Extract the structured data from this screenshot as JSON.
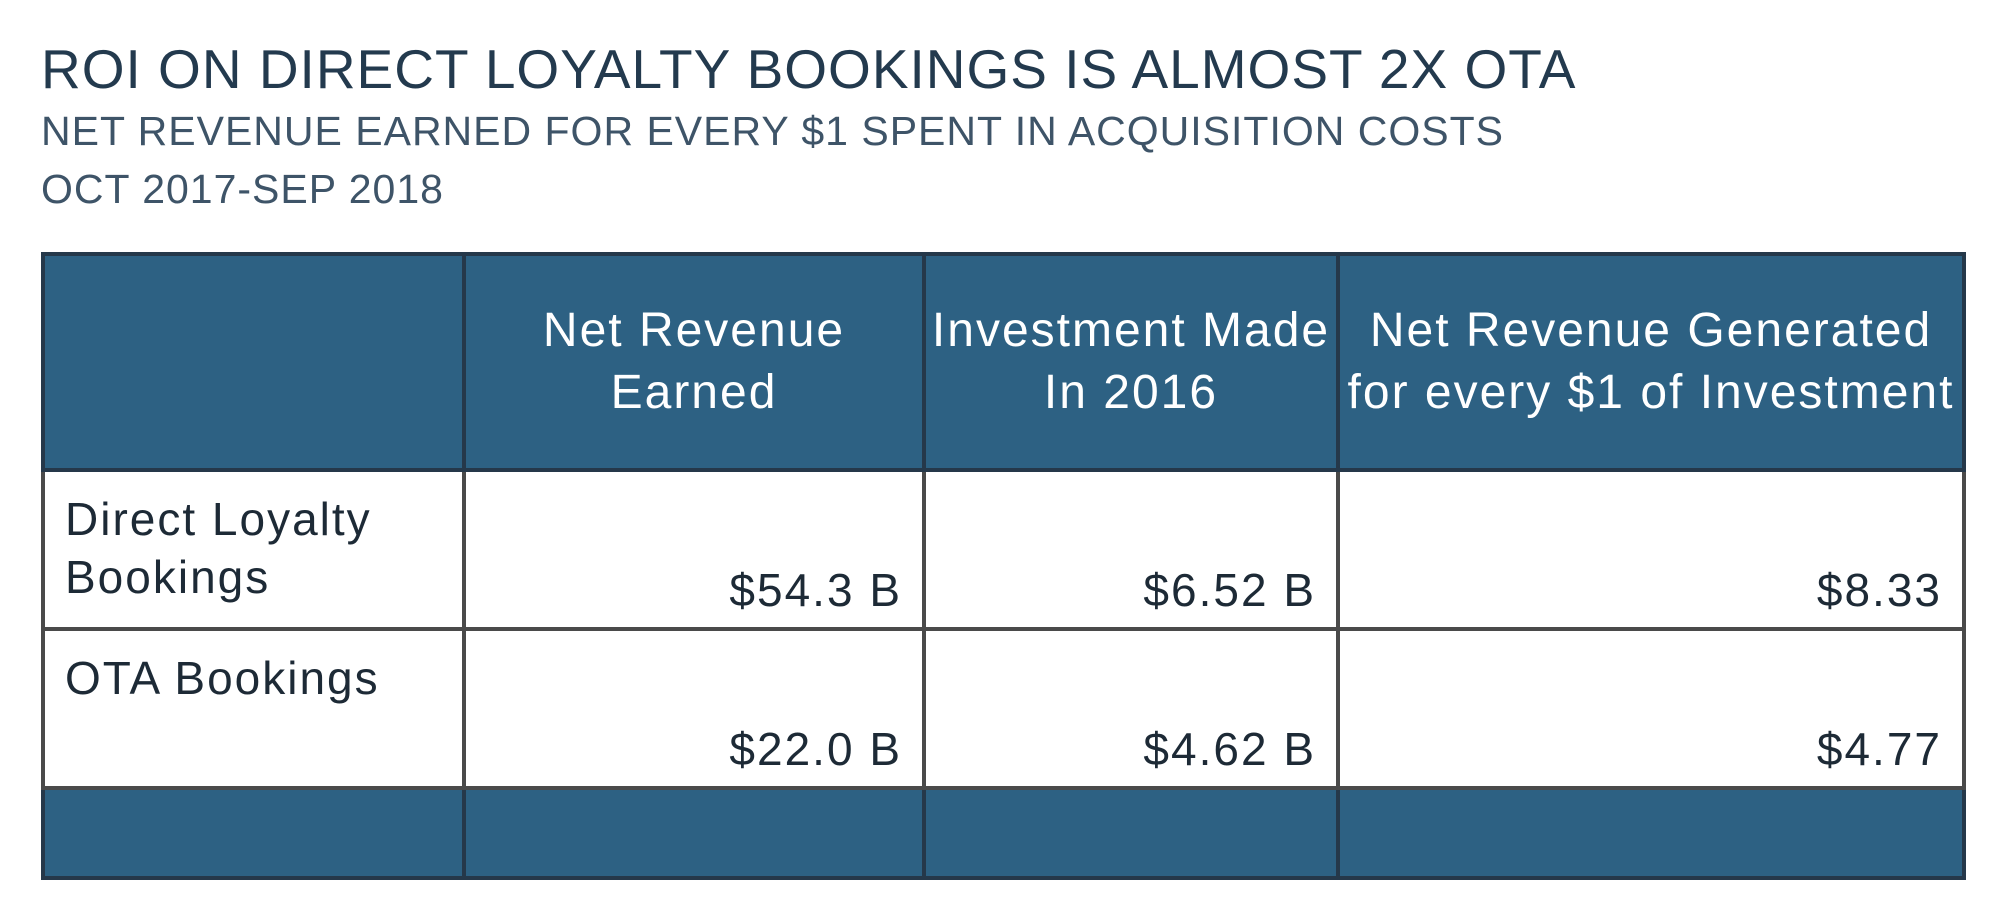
{
  "chart_data": {
    "type": "table",
    "title": "ROI ON DIRECT LOYALTY BOOKINGS IS ALMOST 2X OTA",
    "subtitle": "NET REVENUE EARNED FOR EVERY $1 SPENT IN ACQUISITION COSTS",
    "period": "OCT 2017-SEP 2018",
    "columns": [
      "",
      "Net Revenue Earned",
      "Investment Made In 2016",
      "Net Revenue Generated for every $1 of Investment"
    ],
    "rows": [
      {
        "label": "Direct Loyalty Bookings",
        "cells": [
          "$54.3 B",
          "$6.52 B",
          "$8.33"
        ]
      },
      {
        "label": "OTA Bookings",
        "cells": [
          "$22.0 B",
          "$4.62 B",
          "$4.77"
        ]
      }
    ],
    "colors": {
      "header_fill": "#2d6183",
      "title_text": "#233a4e"
    }
  }
}
